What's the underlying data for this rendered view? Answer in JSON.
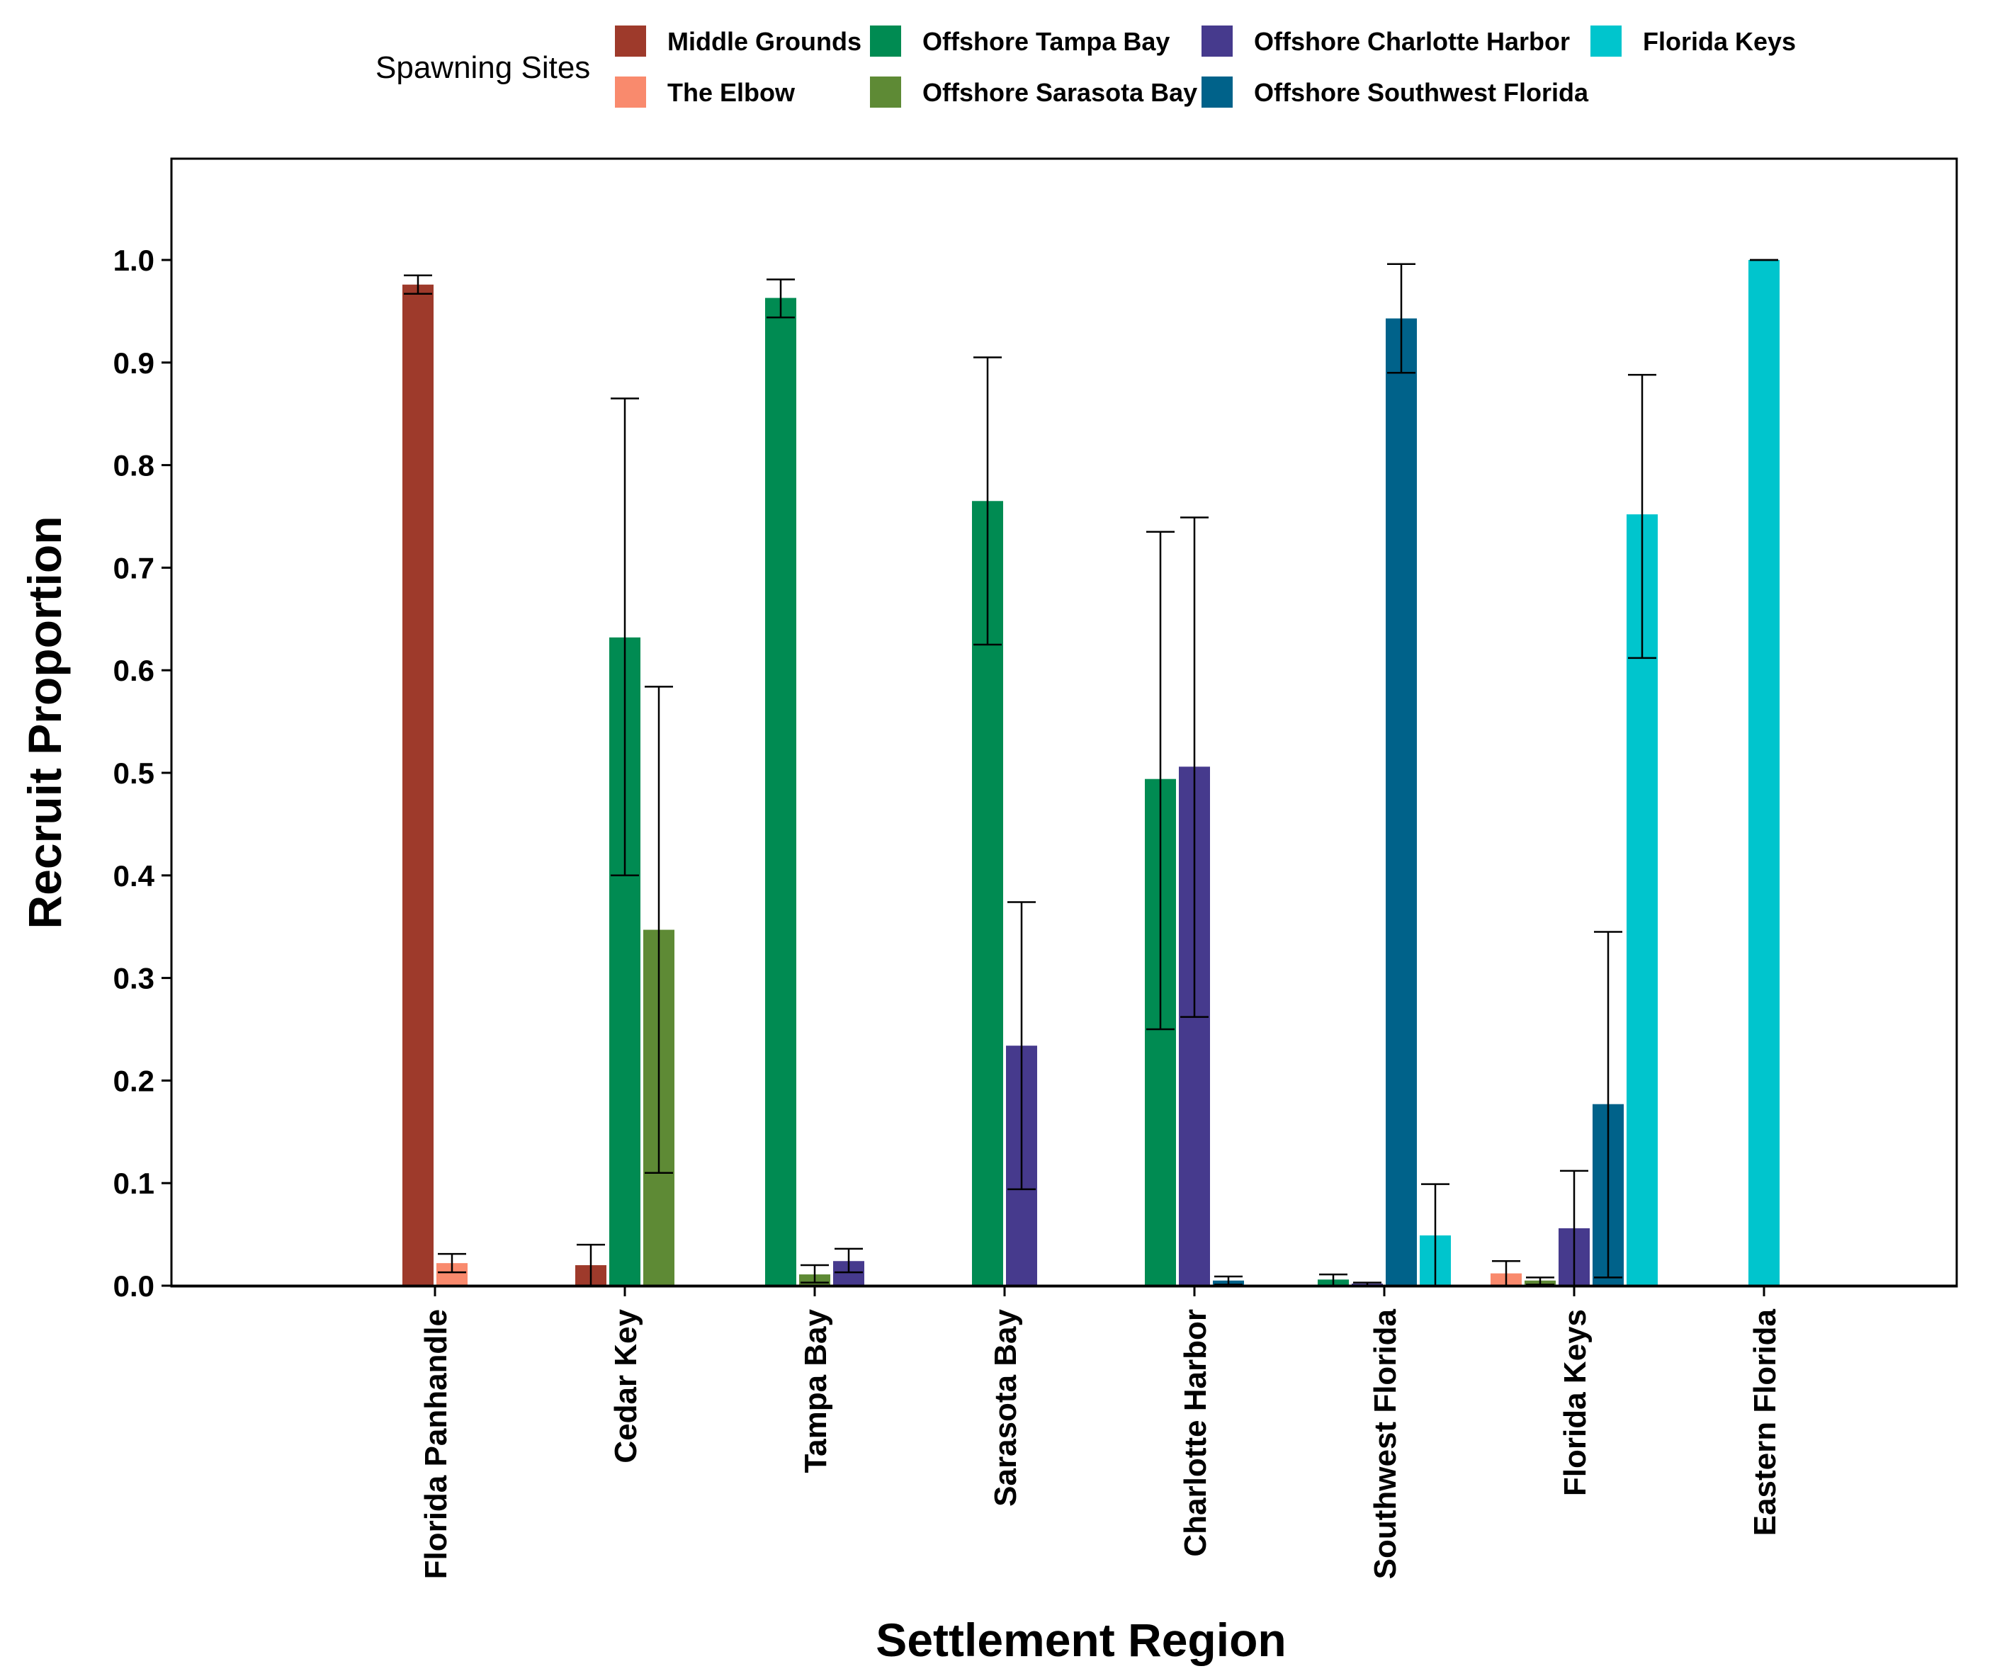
{
  "chart_data": {
    "type": "bar",
    "title": "",
    "xlabel": "Settlement Region",
    "ylabel": "Recruit Proportion",
    "ylim": [
      0,
      1.1
    ],
    "yticks": [
      0.0,
      0.1,
      0.2,
      0.3,
      0.4,
      0.5,
      0.6,
      0.7,
      0.8,
      0.9,
      1.0
    ],
    "ytick_labels": [
      "0.0",
      "0.1",
      "0.2",
      "0.3",
      "0.4",
      "0.5",
      "0.6",
      "0.7",
      "0.8",
      "0.9",
      "1.0"
    ],
    "grid": false,
    "legend_title": "Spawning Sites",
    "legend_position": "top",
    "categories": [
      "Florida Panhandle",
      "Cedar Key",
      "Tampa Bay",
      "Sarasota Bay",
      "Charlotte Harbor",
      "Southwest Florida",
      "Florida Keys",
      "Eastern Florida"
    ],
    "series": [
      {
        "name": "Middle Grounds",
        "color": "#9e3a2b",
        "values": [
          0.976,
          0.02,
          null,
          null,
          null,
          null,
          null,
          null
        ],
        "err_low": [
          0.967,
          0.0,
          null,
          null,
          null,
          null,
          null,
          null
        ],
        "err_high": [
          0.985,
          0.04,
          null,
          null,
          null,
          null,
          null,
          null
        ]
      },
      {
        "name": "The Elbow",
        "color": "#f98a6d",
        "values": [
          0.022,
          null,
          null,
          null,
          null,
          null,
          0.012,
          null
        ],
        "err_low": [
          0.013,
          null,
          null,
          null,
          null,
          null,
          0.0,
          null
        ],
        "err_high": [
          0.031,
          null,
          null,
          null,
          null,
          null,
          0.024,
          null
        ]
      },
      {
        "name": "Offshore Tampa Bay",
        "color": "#008b52",
        "values": [
          null,
          0.632,
          0.963,
          0.765,
          0.494,
          0.006,
          null,
          null
        ],
        "err_low": [
          null,
          0.4,
          0.944,
          0.625,
          0.25,
          0.0,
          null,
          null
        ],
        "err_high": [
          null,
          0.865,
          0.981,
          0.905,
          0.735,
          0.011,
          null,
          null
        ]
      },
      {
        "name": "Offshore Sarasota Bay",
        "color": "#5e8a35",
        "values": [
          null,
          0.347,
          0.011,
          null,
          null,
          null,
          0.005,
          null
        ],
        "err_low": [
          null,
          0.11,
          0.003,
          null,
          null,
          null,
          0.001,
          null
        ],
        "err_high": [
          null,
          0.584,
          0.02,
          null,
          null,
          null,
          0.008,
          null
        ]
      },
      {
        "name": "Offshore Charlotte Harbor",
        "color": "#463a8d",
        "values": [
          null,
          null,
          0.024,
          0.234,
          0.506,
          0.002,
          0.056,
          null
        ],
        "err_low": [
          null,
          null,
          0.013,
          0.094,
          0.262,
          0.0,
          0.0,
          null
        ],
        "err_high": [
          null,
          null,
          0.036,
          0.374,
          0.749,
          0.003,
          0.112,
          null
        ]
      },
      {
        "name": "Offshore Southwest Florida",
        "color": "#00628a",
        "values": [
          null,
          null,
          null,
          null,
          0.005,
          0.943,
          0.177,
          null
        ],
        "err_low": [
          null,
          null,
          null,
          null,
          0.001,
          0.89,
          0.008,
          null
        ],
        "err_high": [
          null,
          null,
          null,
          null,
          0.009,
          0.996,
          0.345,
          null
        ]
      },
      {
        "name": "Florida Keys",
        "color": "#00c5cd",
        "values": [
          null,
          null,
          null,
          null,
          null,
          0.049,
          0.752,
          1.0
        ],
        "err_low": [
          null,
          null,
          null,
          null,
          null,
          0.0,
          0.612,
          1.0
        ],
        "err_high": [
          null,
          null,
          null,
          null,
          null,
          0.099,
          0.888,
          1.0
        ]
      }
    ]
  }
}
